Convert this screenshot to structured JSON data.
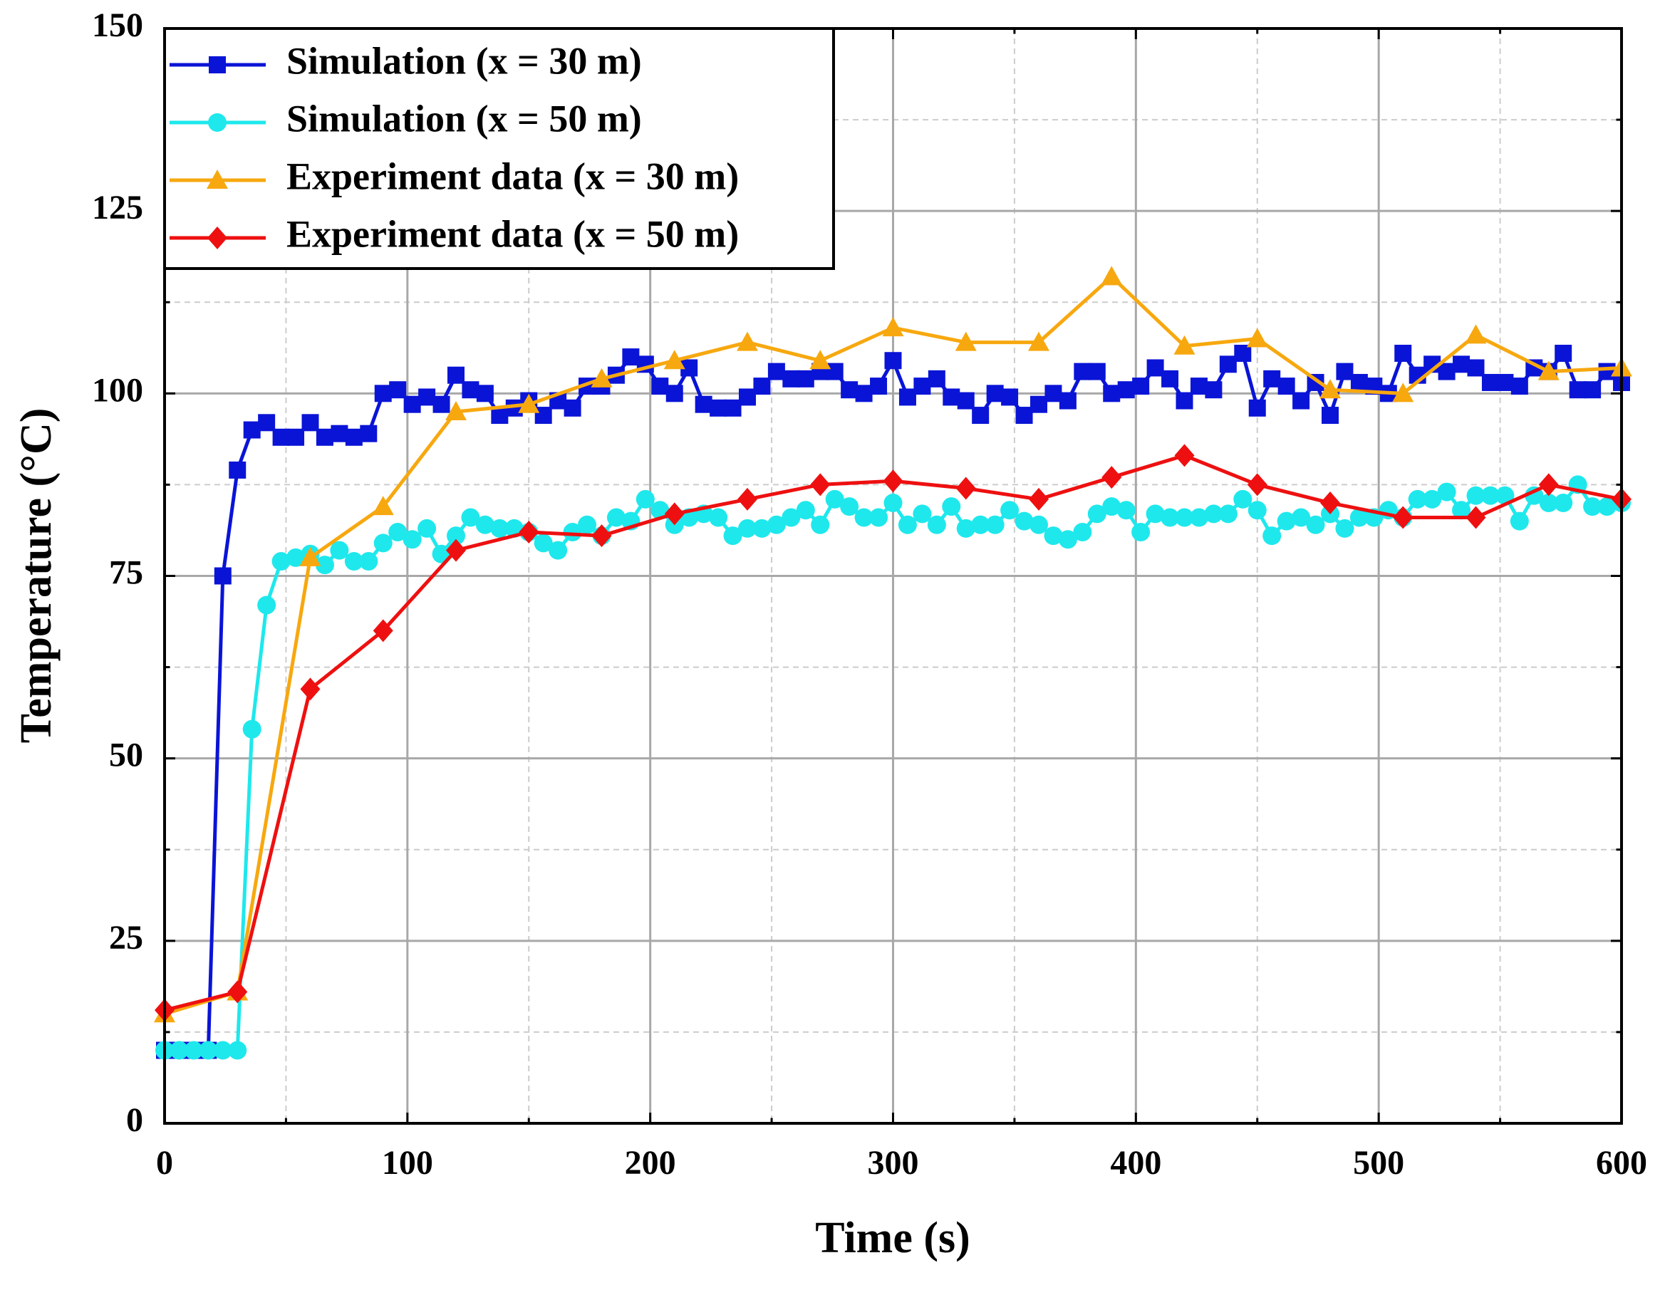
{
  "chart_data": {
    "type": "line",
    "x_label": "Time (s)",
    "y_label": "Temperature (°C)",
    "xlim": [
      0,
      600
    ],
    "xticks": [
      0,
      100,
      200,
      300,
      400,
      500,
      600
    ],
    "xminor": [
      50,
      150,
      250,
      350,
      450,
      550
    ],
    "ylim": [
      0,
      150
    ],
    "yticks": [
      0,
      25,
      50,
      75,
      100,
      125,
      150
    ],
    "yminor": [
      12.5,
      37.5,
      62.5,
      87.5,
      112.5,
      137.5
    ],
    "grid": true,
    "legend": "upper left",
    "series": [
      {
        "name": "Simulation (x = 30 m)",
        "color": "#0a14d6",
        "marker": "square",
        "x": [
          0,
          6,
          12,
          18,
          24,
          30,
          36,
          42,
          48,
          54,
          60,
          66,
          72,
          78,
          84,
          90,
          96,
          102,
          108,
          114,
          120,
          126,
          132,
          138,
          144,
          150,
          156,
          162,
          168,
          174,
          180,
          186,
          192,
          198,
          204,
          210,
          216,
          222,
          228,
          234,
          240,
          246,
          252,
          258,
          264,
          270,
          276,
          282,
          288,
          294,
          300,
          306,
          312,
          318,
          324,
          330,
          336,
          342,
          348,
          354,
          360,
          366,
          372,
          378,
          384,
          390,
          396,
          402,
          408,
          414,
          420,
          426,
          432,
          438,
          444,
          450,
          456,
          462,
          468,
          474,
          480,
          486,
          492,
          498,
          504,
          510,
          516,
          522,
          528,
          534,
          540,
          546,
          552,
          558,
          564,
          570,
          576,
          582,
          588,
          594,
          600
        ],
        "values": [
          10,
          10,
          10,
          10,
          75,
          89.5,
          95,
          96,
          94,
          94,
          96,
          94,
          94.5,
          94,
          94.5,
          100,
          100.5,
          98.5,
          99.5,
          98.5,
          102.5,
          100.5,
          100,
          97,
          98,
          99,
          97,
          99,
          98,
          101,
          101,
          102.5,
          105,
          104,
          101,
          100,
          103.5,
          98.5,
          98,
          98,
          99.5,
          101,
          103,
          102,
          102,
          103,
          103,
          100.5,
          100,
          101,
          104.5,
          99.5,
          101,
          102,
          99.5,
          99,
          97,
          100,
          99.5,
          97,
          98.5,
          100,
          99,
          103,
          103,
          100,
          100.5,
          101,
          103.5,
          102,
          99,
          101,
          100.5,
          104,
          105.5,
          98,
          102,
          101,
          99,
          101.5,
          97,
          103,
          101.5,
          101,
          100,
          105.5,
          102.5,
          104,
          103,
          104,
          103.5,
          101.5,
          101.5,
          101,
          103.5,
          103,
          105.5,
          100.5,
          100.5,
          103,
          101.5
        ]
      },
      {
        "name": "Simulation (x = 50 m)",
        "color": "#1ee8ec",
        "marker": "circle",
        "x": [
          0,
          6,
          12,
          18,
          24,
          30,
          36,
          42,
          48,
          54,
          60,
          66,
          72,
          78,
          84,
          90,
          96,
          102,
          108,
          114,
          120,
          126,
          132,
          138,
          144,
          150,
          156,
          162,
          168,
          174,
          180,
          186,
          192,
          198,
          204,
          210,
          216,
          222,
          228,
          234,
          240,
          246,
          252,
          258,
          264,
          270,
          276,
          282,
          288,
          294,
          300,
          306,
          312,
          318,
          324,
          330,
          336,
          342,
          348,
          354,
          360,
          366,
          372,
          378,
          384,
          390,
          396,
          402,
          408,
          414,
          420,
          426,
          432,
          438,
          444,
          450,
          456,
          462,
          468,
          474,
          480,
          486,
          492,
          498,
          504,
          510,
          516,
          522,
          528,
          534,
          540,
          546,
          552,
          558,
          564,
          570,
          576,
          582,
          588,
          594,
          600
        ],
        "values": [
          10,
          10,
          10,
          10,
          10,
          10,
          54,
          71,
          77,
          77.5,
          78,
          76.5,
          78.5,
          77,
          77,
          79.5,
          81,
          80,
          81.5,
          78,
          80.5,
          83,
          82,
          81.5,
          81.5,
          81,
          79.5,
          78.5,
          81,
          82,
          80.5,
          83,
          82.5,
          85.5,
          84,
          82,
          83,
          83.5,
          83,
          80.5,
          81.5,
          81.5,
          82,
          83,
          84,
          82,
          85.5,
          84.5,
          83,
          83,
          85,
          82,
          83.5,
          82,
          84.5,
          81.5,
          82,
          82,
          84,
          82.5,
          82,
          80.5,
          80,
          81,
          83.5,
          84.5,
          84,
          81,
          83.5,
          83,
          83,
          83,
          83.5,
          83.5,
          85.5,
          84,
          80.5,
          82.5,
          83,
          82,
          83.5,
          81.5,
          83,
          83,
          84,
          83,
          85.5,
          85.5,
          86.5,
          84,
          86,
          86,
          86,
          82.5,
          86,
          85,
          85,
          87.5,
          84.5,
          84.5,
          85
        ]
      },
      {
        "name": "Experiment data (x = 30 m)",
        "color": "#f7a80f",
        "marker": "triangle",
        "x": [
          0,
          30,
          60,
          90,
          120,
          150,
          180,
          210,
          240,
          270,
          300,
          330,
          360,
          390,
          420,
          450,
          480,
          510,
          540,
          570,
          600
        ],
        "values": [
          15,
          18,
          77.5,
          84.5,
          97.5,
          98.5,
          102,
          104.5,
          107,
          104.5,
          109,
          107,
          107,
          116,
          106.5,
          107.5,
          100.5,
          100,
          108,
          103,
          103.5
        ]
      },
      {
        "name": "Experiment data (x = 50 m)",
        "color": "#ee1010",
        "marker": "diamond",
        "x": [
          0,
          30,
          60,
          90,
          120,
          150,
          180,
          210,
          240,
          270,
          300,
          330,
          360,
          390,
          420,
          450,
          480,
          510,
          540,
          570,
          600
        ],
        "values": [
          15.5,
          18,
          59.5,
          67.5,
          78.5,
          81,
          80.5,
          83.5,
          85.5,
          87.5,
          88,
          87,
          85.5,
          88.5,
          91.5,
          87.5,
          85,
          83,
          83,
          87.5,
          85.5
        ]
      }
    ]
  }
}
